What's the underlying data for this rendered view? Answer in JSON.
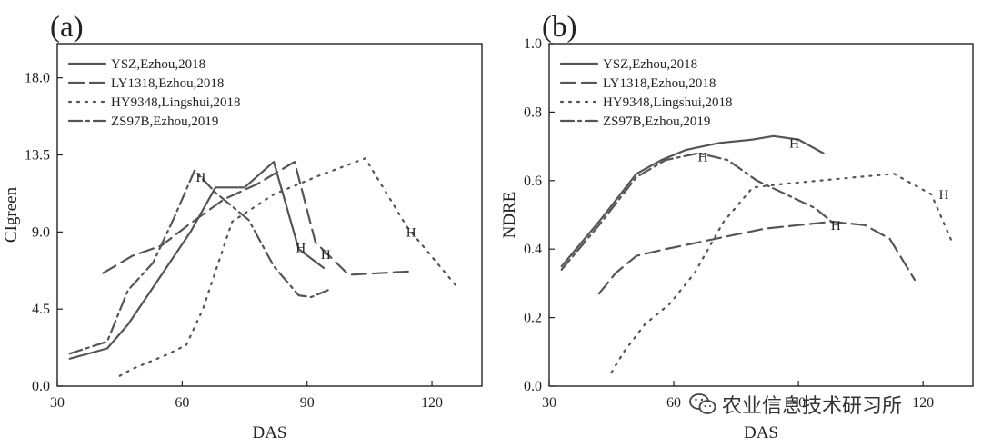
{
  "chart_data": [
    {
      "type": "line",
      "panel_label": "(a)",
      "xlabel": "DAS",
      "ylabel": "CIgreen",
      "xlim": [
        30,
        132
      ],
      "ylim": [
        0,
        20
      ],
      "xticks": [
        30,
        60,
        90,
        120
      ],
      "yticks": [
        0.0,
        4.5,
        9.0,
        13.5,
        18.0
      ],
      "ytick_labels": [
        "0.0",
        "4.5",
        "9.0",
        "13.5",
        "18.0"
      ],
      "grid": false,
      "legend_position": "top-left",
      "series": [
        {
          "name": "YSZ,Ezhou,2018",
          "dash": "solid",
          "x": [
            33,
            42,
            47,
            52,
            57,
            62,
            68,
            75,
            82,
            88,
            94
          ],
          "y": [
            1.6,
            2.2,
            3.6,
            5.4,
            7.2,
            9.0,
            11.6,
            11.6,
            13.1,
            8.0,
            6.9
          ]
        },
        {
          "name": "LY1318,Ezhou,2018",
          "dash": "dashed",
          "x": [
            41,
            48,
            55,
            62,
            70,
            78,
            87,
            92,
            100,
            115
          ],
          "y": [
            6.6,
            7.6,
            8.2,
            9.5,
            10.9,
            11.8,
            13.1,
            8.4,
            6.5,
            6.7
          ]
        },
        {
          "name": "HY9348,Lingshui,2018",
          "dash": "dotted",
          "x": [
            45,
            48,
            56,
            61,
            65,
            72,
            82,
            93,
            104,
            114,
            126
          ],
          "y": [
            0.6,
            1.0,
            1.8,
            2.4,
            4.5,
            9.6,
            11.2,
            12.3,
            13.3,
            9.3,
            5.8
          ],
          "marker_label": "H",
          "marker_x": 115,
          "marker_y": 9.0
        },
        {
          "name": "ZS97B,Ezhou,2019",
          "dash": "dashdot",
          "x": [
            33,
            42,
            47,
            53,
            58,
            63,
            68,
            76,
            82,
            88,
            91,
            95
          ],
          "y": [
            1.9,
            2.6,
            5.6,
            7.2,
            9.8,
            12.6,
            11.3,
            9.7,
            7.0,
            5.3,
            5.2,
            5.6
          ]
        }
      ],
      "annotations": [
        {
          "text": "H",
          "x": 64.5,
          "y": 12.2
        },
        {
          "text": "H",
          "x": 88.5,
          "y": 8.1
        },
        {
          "text": "H",
          "x": 94.5,
          "y": 7.7
        },
        {
          "text": "H",
          "x": 115,
          "y": 9.0
        }
      ]
    },
    {
      "type": "line",
      "panel_label": "(b)",
      "xlabel": "DAS",
      "ylabel": "NDRE",
      "xlim": [
        30,
        132
      ],
      "ylim": [
        0,
        1.0
      ],
      "xticks": [
        30,
        60,
        90,
        120
      ],
      "yticks": [
        0.0,
        0.2,
        0.4,
        0.6,
        0.8,
        1.0
      ],
      "ytick_labels": [
        "0.0",
        "0.2",
        "0.4",
        "0.6",
        "0.8",
        "1.0"
      ],
      "grid": false,
      "legend_position": "top-left",
      "series": [
        {
          "name": "YSZ,Ezhou,2018",
          "dash": "solid",
          "x": [
            33,
            42,
            51,
            57,
            63,
            71,
            79,
            84,
            90,
            96
          ],
          "y": [
            0.35,
            0.48,
            0.62,
            0.66,
            0.69,
            0.71,
            0.72,
            0.73,
            0.72,
            0.68
          ]
        },
        {
          "name": "LY1318,Ezhou,2018",
          "dash": "dashed",
          "x": [
            42,
            46,
            51,
            58,
            66,
            74,
            82,
            90,
            98,
            106,
            112,
            118
          ],
          "y": [
            0.27,
            0.33,
            0.38,
            0.4,
            0.42,
            0.44,
            0.46,
            0.47,
            0.48,
            0.47,
            0.43,
            0.31
          ]
        },
        {
          "name": "HY9348,Lingshui,2018",
          "dash": "dotted",
          "x": [
            45,
            48,
            53,
            59,
            65,
            72,
            79,
            86,
            95,
            104,
            113,
            122,
            127
          ],
          "y": [
            0.04,
            0.1,
            0.18,
            0.24,
            0.33,
            0.48,
            0.58,
            0.59,
            0.6,
            0.61,
            0.62,
            0.56,
            0.42
          ]
        },
        {
          "name": "ZS97B,Ezhou,2019",
          "dash": "dashdot",
          "x": [
            33,
            42,
            51,
            58,
            66,
            73,
            80,
            87,
            94,
            99
          ],
          "y": [
            0.34,
            0.47,
            0.61,
            0.66,
            0.68,
            0.66,
            0.6,
            0.56,
            0.52,
            0.47
          ]
        }
      ],
      "annotations": [
        {
          "text": "H",
          "x": 67,
          "y": 0.67
        },
        {
          "text": "H",
          "x": 89,
          "y": 0.71
        },
        {
          "text": "H",
          "x": 99,
          "y": 0.47
        },
        {
          "text": "H",
          "x": 125,
          "y": 0.56
        }
      ]
    }
  ],
  "watermark": {
    "icon": "wechat-icon",
    "text": "农业信息技术研习所"
  }
}
